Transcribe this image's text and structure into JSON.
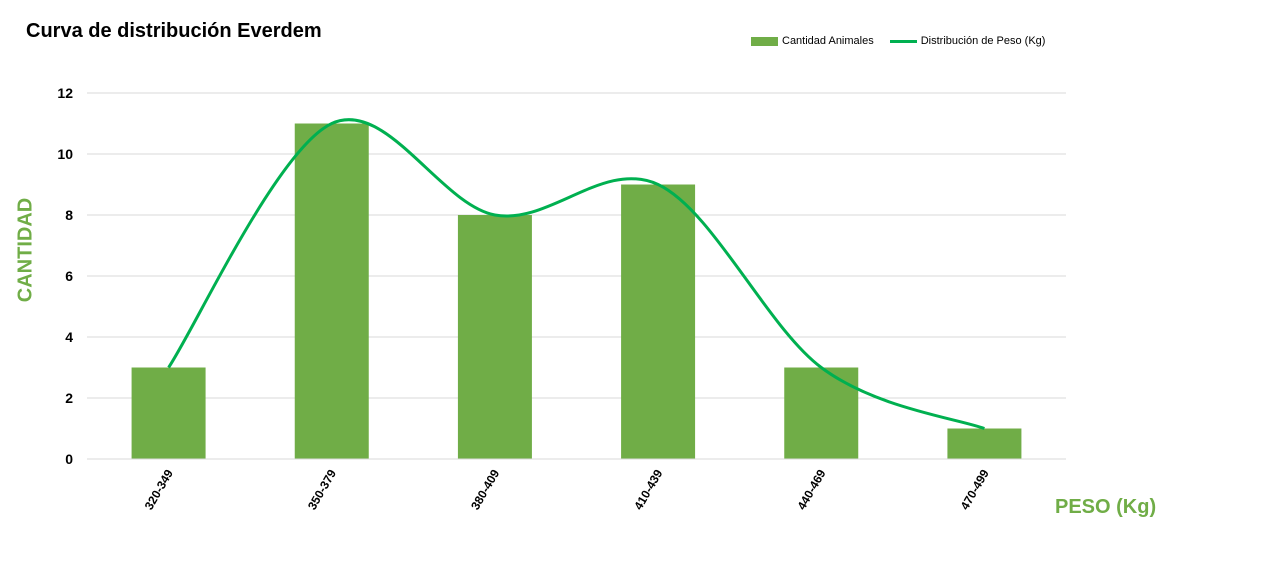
{
  "chart_data": {
    "type": "bar",
    "title": "Curva de distribución Everdem",
    "xlabel": "PESO (Kg)",
    "ylabel": "CANTIDAD",
    "categories": [
      "320-349",
      "350-379",
      "380-409",
      "410-439",
      "440-469",
      "470-499"
    ],
    "series": [
      {
        "name": "Cantidad Animales",
        "type": "bar",
        "values": [
          3,
          11,
          8,
          9,
          3,
          1
        ],
        "color": "#70AD47"
      },
      {
        "name": "Distribución de Peso (Kg)",
        "type": "line",
        "smooth": true,
        "values": [
          3,
          11,
          8,
          9,
          3,
          1
        ],
        "color": "#00B050"
      }
    ],
    "ylim": [
      0,
      12
    ],
    "yticks": [
      0,
      2,
      4,
      6,
      8,
      10,
      12
    ],
    "grid": true,
    "legend_position": "top-right"
  },
  "colors": {
    "axis_label": "#70AD47",
    "grid": "#D9D9D9"
  }
}
